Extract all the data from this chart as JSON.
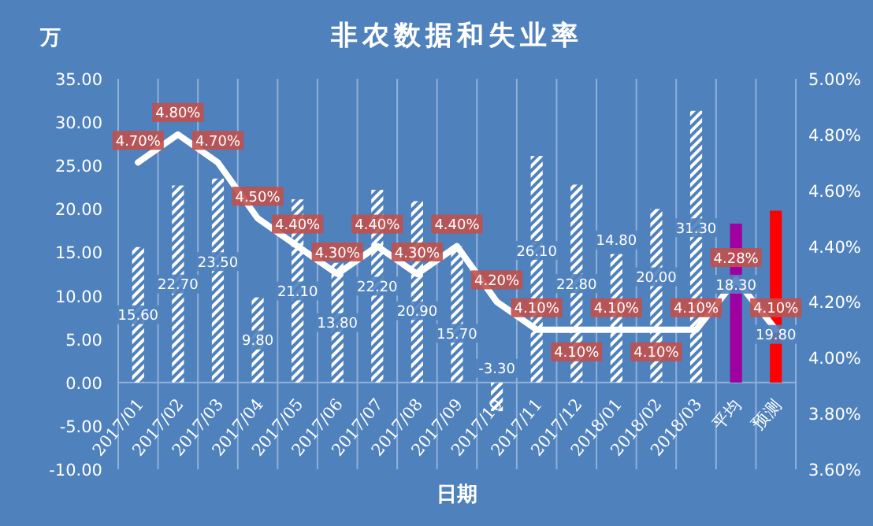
{
  "chart_data": {
    "type": "bar",
    "title": "非农数据和失业率",
    "ylabel": "万",
    "xlabel": "日期",
    "categories": [
      "2017/01",
      "2017/02",
      "2017/03",
      "2017/04",
      "2017/05",
      "2017/06",
      "2017/07",
      "2017/08",
      "2017/09",
      "2017/10",
      "2017/11",
      "2017/12",
      "2018/01",
      "2018/02",
      "2018/03",
      "平均",
      "预测"
    ],
    "series": [
      {
        "colors": [
          "#ffffff",
          "#ffffff",
          "#ffffff",
          "#ffffff",
          "#ffffff",
          "#ffffff",
          "#ffffff",
          "#ffffff",
          "#ffffff",
          "#ffffff",
          "#ffffff",
          "#ffffff",
          "#ffffff",
          "#ffffff",
          "#ffffff",
          "#a000a0",
          "#ff0000"
        ],
        "values": [
          15.6,
          22.7,
          23.5,
          9.8,
          21.1,
          13.8,
          22.2,
          20.9,
          15.7,
          -3.3,
          26.1,
          22.8,
          14.8,
          20.0,
          31.3,
          18.3,
          19.8
        ],
        "value_labels": [
          "15.60",
          "22.70",
          "23.50",
          "9.80",
          "21.10",
          "13.80",
          "22.20",
          "20.90",
          "15.70",
          "-3.30",
          "26.10",
          "22.80",
          "14.80",
          "20.00",
          "31.30",
          "18.30",
          "19.80"
        ]
      },
      {
        "type": "line",
        "axis": "y2",
        "color": "#ffffff",
        "values": [
          4.7,
          4.8,
          4.7,
          4.5,
          4.4,
          4.3,
          4.4,
          4.3,
          4.4,
          4.2,
          4.1,
          4.1,
          4.1,
          4.1,
          4.1,
          4.28,
          4.1
        ],
        "value_labels": [
          "4.70%",
          "4.80%",
          "4.70%",
          "4.50%",
          "4.40%",
          "4.30%",
          "4.40%",
          "4.30%",
          "4.40%",
          "4.20%",
          "4.10%",
          "4.10%",
          "4.10%",
          "4.10%",
          "4.10%",
          "4.28%",
          "4.10%"
        ]
      }
    ],
    "ylim": [
      -10,
      35
    ],
    "yticks": [
      {
        "value": -10,
        "label": "-10.00"
      },
      {
        "value": -5,
        "label": "-5.00"
      },
      {
        "value": 0,
        "label": "0.00"
      },
      {
        "value": 5,
        "label": "5.00"
      },
      {
        "value": 10,
        "label": "10.00"
      },
      {
        "value": 15,
        "label": "15.00"
      },
      {
        "value": 20,
        "label": "20.00"
      },
      {
        "value": 25,
        "label": "25.00"
      },
      {
        "value": 30,
        "label": "30.00"
      },
      {
        "value": 35,
        "label": "35.00"
      }
    ],
    "y2lim": [
      3.6,
      5.0
    ],
    "y2ticks": [
      {
        "value": 3.6,
        "label": "3.60%"
      },
      {
        "value": 3.8,
        "label": "3.80%"
      },
      {
        "value": 4.0,
        "label": "4.00%"
      },
      {
        "value": 4.2,
        "label": "4.20%"
      },
      {
        "value": 4.4,
        "label": "4.40%"
      },
      {
        "value": 4.6,
        "label": "4.60%"
      },
      {
        "value": 4.8,
        "label": "4.80%"
      },
      {
        "value": 5.0,
        "label": "5.00%"
      }
    ],
    "grid": "x"
  }
}
